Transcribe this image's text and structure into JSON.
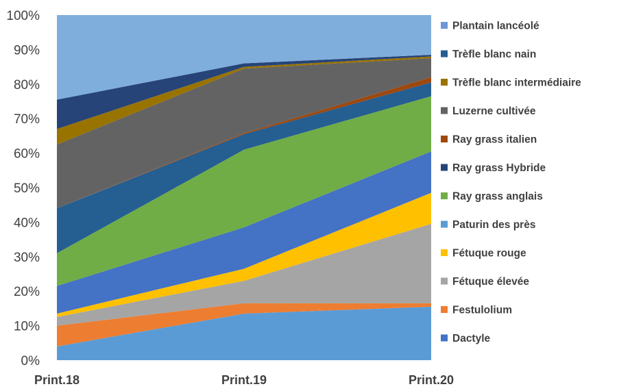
{
  "chart_data": {
    "type": "area",
    "stacked": "percent",
    "categories": [
      "Print.18",
      "Print.19",
      "Print.20"
    ],
    "ylim": [
      0,
      100
    ],
    "yticks": [
      "0%",
      "10%",
      "20%",
      "30%",
      "40%",
      "50%",
      "60%",
      "70%",
      "80%",
      "90%",
      "100%"
    ],
    "grid": false,
    "legend_position": "right",
    "series": [
      {
        "name": "Paturin des près",
        "color": "#5B9BD5",
        "values": [
          4,
          13.5,
          15.5
        ]
      },
      {
        "name": "Festulolium",
        "color": "#ED7D31",
        "values": [
          6,
          3,
          1
        ]
      },
      {
        "name": "Fétuque élevée",
        "color": "#A5A5A5",
        "values": [
          2.5,
          6.5,
          23
        ]
      },
      {
        "name": "Fétuque rouge",
        "color": "#FFC000",
        "values": [
          1,
          3.5,
          9
        ]
      },
      {
        "name": "Dactyle",
        "color": "#4472C4",
        "values": [
          8,
          12,
          12
        ]
      },
      {
        "name": "Ray grass anglais",
        "color": "#70AD47",
        "values": [
          9.5,
          22.5,
          16
        ]
      },
      {
        "name": "Trèfle blanc nain",
        "color": "#255E91",
        "values": [
          13,
          4.5,
          4
        ]
      },
      {
        "name": "Ray grass italien",
        "color": "#9E480E",
        "values": [
          0,
          0.3,
          1.5
        ]
      },
      {
        "name": "Luzerne cultivée",
        "color": "#636363",
        "values": [
          18.5,
          18.7,
          5.5
        ]
      },
      {
        "name": "Trèfle blanc intermédiaire",
        "color": "#997300",
        "values": [
          4.5,
          0.5,
          0.5
        ]
      },
      {
        "name": "Ray grass Hybride",
        "color": "#264478",
        "values": [
          8.5,
          1,
          0.5
        ]
      },
      {
        "name": "Plantain lancéolé",
        "color": "#7FAEDC",
        "values": [
          24.5,
          14,
          11.5
        ]
      }
    ],
    "legend": [
      {
        "label": "Plantain lancéolé",
        "color": "#6F97D8"
      },
      {
        "label": "Trèfle blanc nain",
        "color": "#255E91"
      },
      {
        "label": "Trèfle blanc intermédiaire",
        "color": "#997300"
      },
      {
        "label": "Luzerne cultivée",
        "color": "#636363"
      },
      {
        "label": "Ray grass italien",
        "color": "#9E480E"
      },
      {
        "label": "Ray grass Hybride",
        "color": "#264478"
      },
      {
        "label": "Ray grass anglais",
        "color": "#70AD47"
      },
      {
        "label": "Paturin des près",
        "color": "#5B9BD5"
      },
      {
        "label": "Fétuque rouge",
        "color": "#FFC000"
      },
      {
        "label": "Fétuque élevée",
        "color": "#A5A5A5"
      },
      {
        "label": "Festulolium",
        "color": "#ED7D31"
      },
      {
        "label": "Dactyle",
        "color": "#4472C4"
      }
    ]
  }
}
